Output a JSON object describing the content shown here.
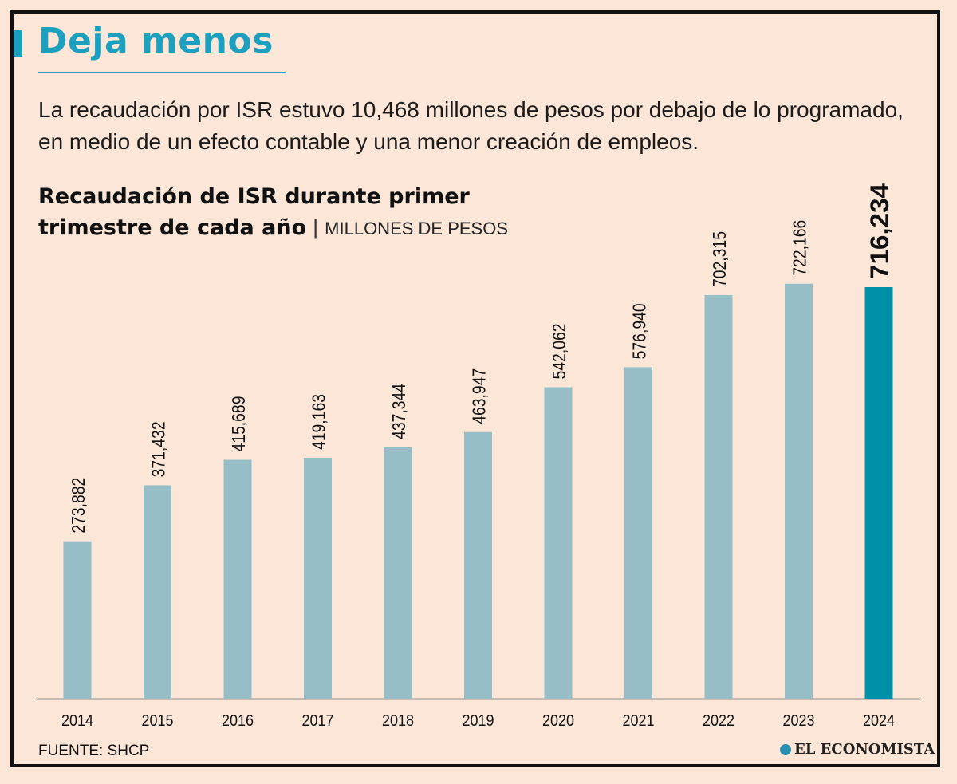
{
  "colors": {
    "accent": "#1ba1bf",
    "bar": "#97bec6",
    "highlight_bar": "#0090a8",
    "background": "#fbe6d7",
    "text": "#111111"
  },
  "header": {
    "headline": "Deja menos",
    "subtitle": "La recaudación por ISR estuvo 10,468 millones de pesos por debajo de lo programado, en medio de un efecto contable y una menor creación de empleos."
  },
  "chart_header": {
    "title_line1": "Recaudación de ISR durante primer",
    "title_line2": "trimestre de cada año",
    "separator": "|",
    "units": "MILLONES DE PESOS"
  },
  "chart_data": {
    "type": "bar",
    "categories": [
      "2014",
      "2015",
      "2016",
      "2017",
      "2018",
      "2019",
      "2020",
      "2021",
      "2022",
      "2023",
      "2024"
    ],
    "values": [
      273882,
      371432,
      415689,
      419163,
      437344,
      463947,
      542062,
      576940,
      702315,
      722166,
      716234
    ],
    "value_labels": [
      "273,882",
      "371,432",
      "415,689",
      "419,163",
      "437,344",
      "463,947",
      "542,062",
      "576,940",
      "702,315",
      "722,166",
      "716,234"
    ],
    "highlight_category": "2024",
    "ylim": [
      0,
      1000000
    ],
    "grid": false
  },
  "footer": {
    "source": "FUENTE: SHCP",
    "logo_text": "EL ECONOMISTA"
  }
}
